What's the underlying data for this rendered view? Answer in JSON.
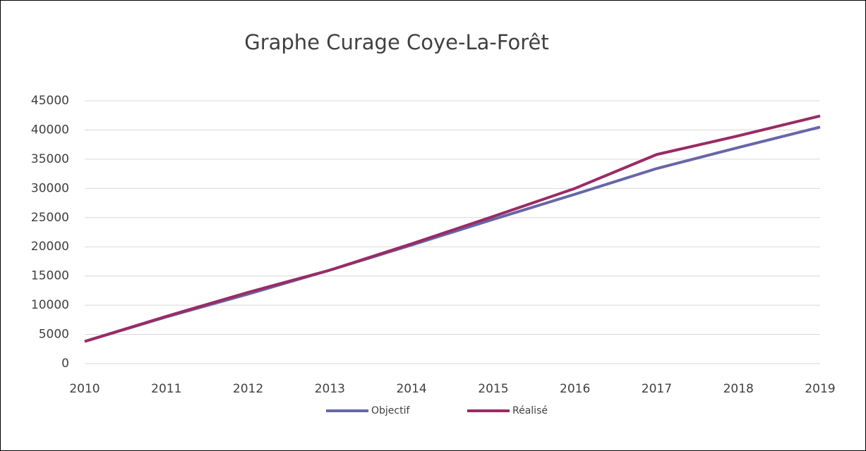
{
  "chart_data": {
    "type": "line",
    "title": "Graphe Curage Coye-La-Forêt",
    "categories": [
      "2010",
      "2011",
      "2012",
      "2013",
      "2014",
      "2015",
      "2016",
      "2017",
      "2018",
      "2019"
    ],
    "series": [
      {
        "name": "Objectif",
        "color": "#6766a8",
        "values": [
          3800,
          8000,
          11900,
          16000,
          20300,
          24700,
          29000,
          33400,
          37000,
          40500
        ]
      },
      {
        "name": "Réalisé",
        "color": "#9a2b63",
        "values": [
          3800,
          8100,
          12200,
          16000,
          20500,
          25200,
          30000,
          35800,
          39000,
          42400
        ]
      }
    ],
    "ylim": [
      0,
      45000
    ],
    "yticks": [
      0,
      5000,
      10000,
      15000,
      20000,
      25000,
      30000,
      35000,
      40000,
      45000
    ],
    "grid": true,
    "legend": "bottom"
  }
}
